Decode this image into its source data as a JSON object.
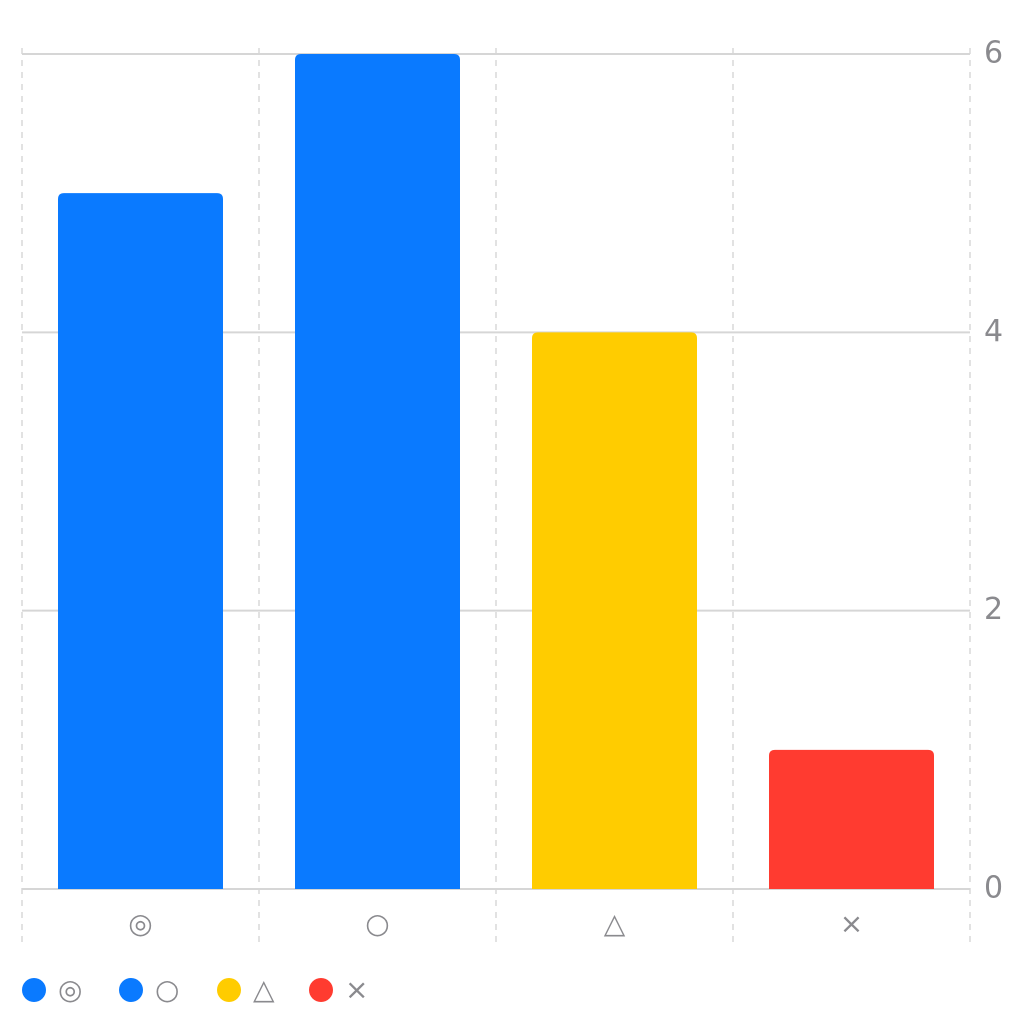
{
  "chart_data": {
    "type": "bar",
    "categories": [
      "◎",
      "○",
      "△",
      "×"
    ],
    "values": [
      5,
      6,
      4,
      1
    ],
    "colors": [
      "#0a7aff",
      "#0a7aff",
      "#ffcc00",
      "#ff3b30"
    ],
    "ylim": [
      0,
      6
    ],
    "yticks": [
      0,
      2,
      4,
      6
    ],
    "grid": true,
    "legend": "bottom-left"
  }
}
